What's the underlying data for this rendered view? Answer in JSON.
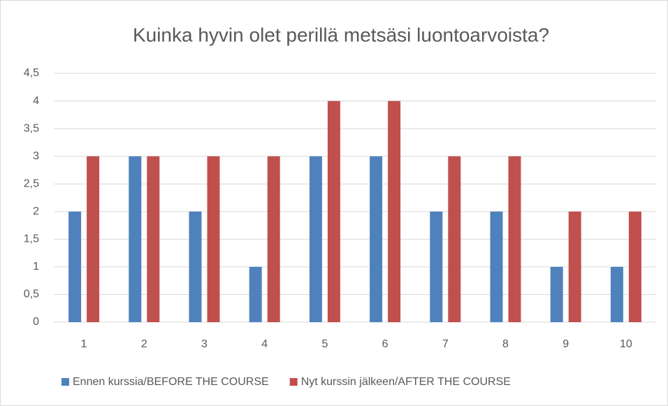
{
  "chart_data": {
    "type": "bar",
    "title": "Kuinka hyvin olet perillä metsäsi luontoarvoista?",
    "categories": [
      "1",
      "2",
      "3",
      "4",
      "5",
      "6",
      "7",
      "8",
      "9",
      "10"
    ],
    "series": [
      {
        "name": "Ennen kurssia/BEFORE THE COURSE",
        "color": "#4f81bd",
        "values": [
          2,
          3,
          2,
          1,
          3,
          3,
          2,
          2,
          1,
          1
        ]
      },
      {
        "name": "Nyt kurssin jälkeen/AFTER THE COURSE",
        "color": "#c0504d",
        "values": [
          3,
          3,
          3,
          3,
          4,
          4,
          3,
          3,
          2,
          2
        ]
      }
    ],
    "ylim": [
      0,
      4.5
    ],
    "yticks": [
      0,
      {
        "value": 0.5,
        "label": "0,5"
      },
      1,
      {
        "value": 1.5,
        "label": "1,5"
      },
      2,
      {
        "value": 2.5,
        "label": "2,5"
      },
      3,
      {
        "value": 3.5,
        "label": "3,5"
      },
      4,
      {
        "value": 4.5,
        "label": "4,5"
      }
    ],
    "grid": true,
    "legend": "bottom"
  }
}
